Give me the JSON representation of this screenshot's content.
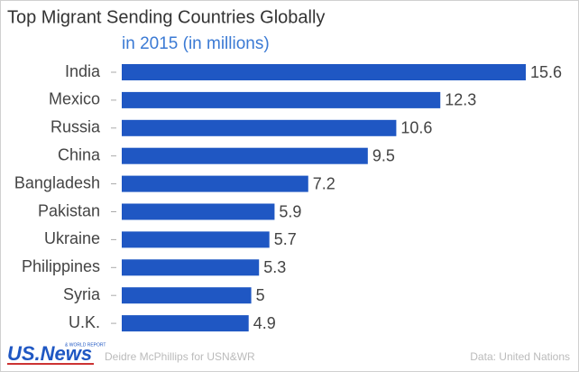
{
  "chart_data": {
    "type": "bar",
    "orientation": "horizontal",
    "title": "Top Migrant Sending Countries Globally",
    "subtitle": "in 2015 (in millions)",
    "categories": [
      "India",
      "Mexico",
      "Russia",
      "China",
      "Bangladesh",
      "Pakistan",
      "Ukraine",
      "Philippines",
      "Syria",
      "U.K."
    ],
    "values": [
      15.6,
      12.3,
      10.6,
      9.5,
      7.2,
      5.9,
      5.7,
      5.3,
      5,
      4.9
    ],
    "color": "#1f57c3",
    "logo": {
      "text": "US.News",
      "small": "& WORLD REPORT"
    },
    "credit": "Deidre McPhillips for USN&WR",
    "source": "Data: United Nations"
  }
}
